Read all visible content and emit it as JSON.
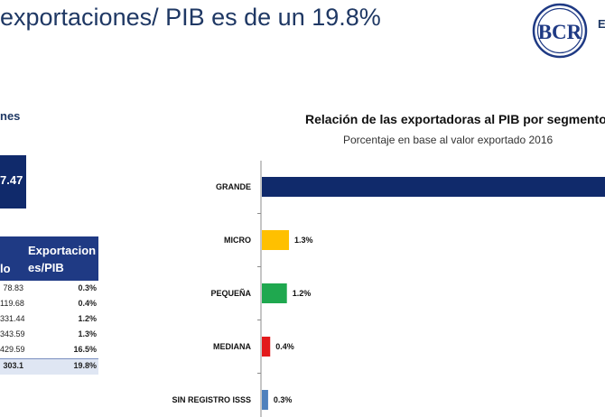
{
  "header": {
    "title": "exportaciones/ PIB es de un 19.8%",
    "logo_text": "BCR",
    "logo_side_text": "E"
  },
  "left_panel": {
    "subtitle": "nes",
    "total_value": "7.47",
    "table": {
      "col1_header": "lo",
      "col2_header_line1": "Exportacion",
      "col2_header_line2": "es/PIB",
      "rows": [
        {
          "c1": "78.83",
          "c2": "0.3%"
        },
        {
          "c1": "119.68",
          "c2": "0.4%"
        },
        {
          "c1": "331.44",
          "c2": "1.2%"
        },
        {
          "c1": "343.59",
          "c2": "1.3%"
        },
        {
          "c1": "429.59",
          "c2": "16.5%"
        }
      ],
      "total": {
        "c1": "303.1",
        "c2": "19.8%"
      }
    }
  },
  "chart_data": {
    "type": "bar",
    "orientation": "horizontal",
    "title": "Relación de las exportadoras al PIB por segmento",
    "subtitle": "Porcentaje en base al valor exportado 2016",
    "categories": [
      "GRANDE",
      "MICRO",
      "PEQUEÑA",
      "MEDIANA",
      "SIN REGISTRO ISSS"
    ],
    "values": [
      16.5,
      1.3,
      1.2,
      0.4,
      0.3
    ],
    "value_labels": [
      "",
      "1.3%",
      "1.2%",
      "0.4%",
      "0.3%"
    ],
    "colors": [
      "#102a6b",
      "#ffc000",
      "#1fa84f",
      "#e31a1c",
      "#4f81bd"
    ],
    "xlim": [
      0,
      16.5
    ],
    "grid": false,
    "legend": "none"
  }
}
